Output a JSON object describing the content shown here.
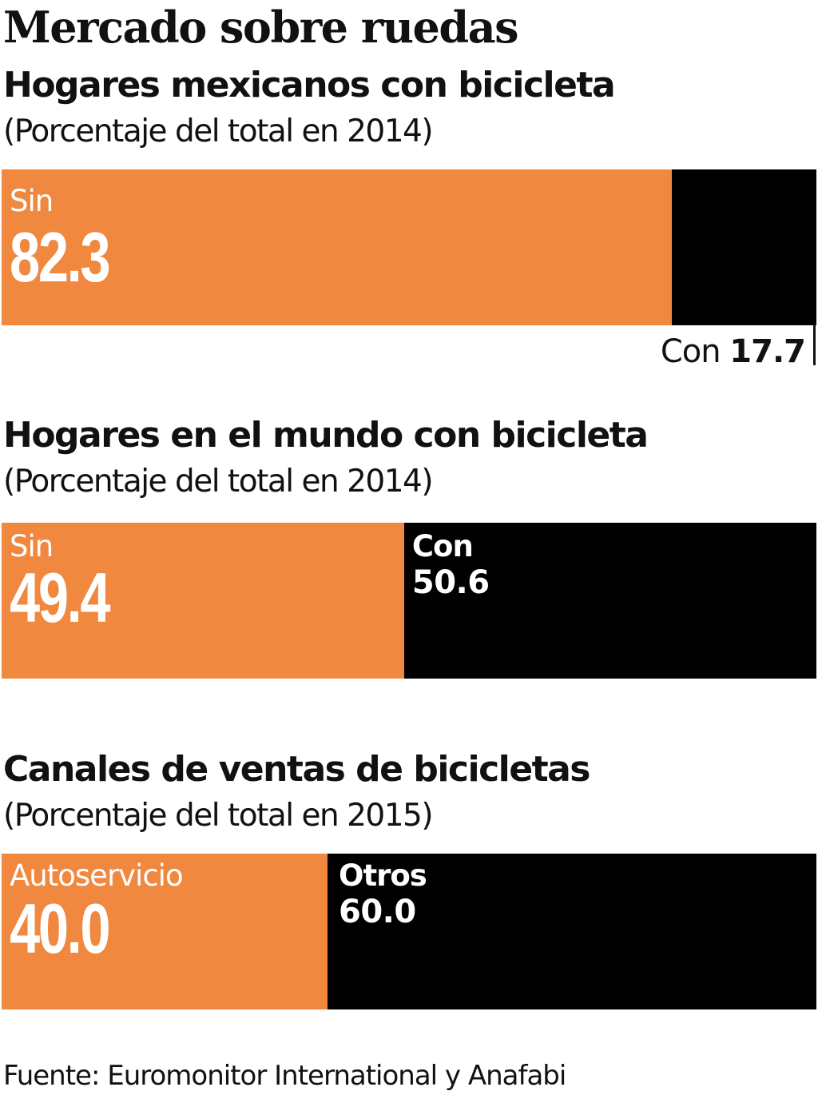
{
  "title": "Mercado sobre ruedas",
  "colors": {
    "sin": "#f0883f",
    "con": "#000000"
  },
  "chart_data": [
    {
      "type": "bar",
      "stacked": true,
      "orientation": "horizontal",
      "title": "Hogares mexicanos con bicicleta",
      "subtitle": "(Porcentaje del total en 2014)",
      "series": [
        {
          "name": "Sin",
          "values": [
            82.3
          ],
          "label": "82.3"
        },
        {
          "name": "Con",
          "values": [
            17.7
          ],
          "label": "17.7"
        }
      ],
      "xlim": [
        0,
        100
      ]
    },
    {
      "type": "bar",
      "stacked": true,
      "orientation": "horizontal",
      "title": "Hogares en el mundo con bicicleta",
      "subtitle": "(Porcentaje del total en 2014)",
      "series": [
        {
          "name": "Sin",
          "values": [
            49.4
          ],
          "label": "49.4"
        },
        {
          "name": "Con",
          "values": [
            50.6
          ],
          "label": "50.6"
        }
      ],
      "xlim": [
        0,
        100
      ]
    },
    {
      "type": "bar",
      "stacked": true,
      "orientation": "horizontal",
      "title": "Canales de ventas de bicicletas",
      "subtitle": "(Porcentaje del total en 2015)",
      "series": [
        {
          "name": "Autoservicio",
          "values": [
            40.0
          ],
          "label": "40.0"
        },
        {
          "name": "Otros",
          "values": [
            60.0
          ],
          "label": "60.0"
        }
      ],
      "xlim": [
        0,
        100
      ]
    }
  ],
  "source": "Fuente: Euromonitor International y Anafabi"
}
